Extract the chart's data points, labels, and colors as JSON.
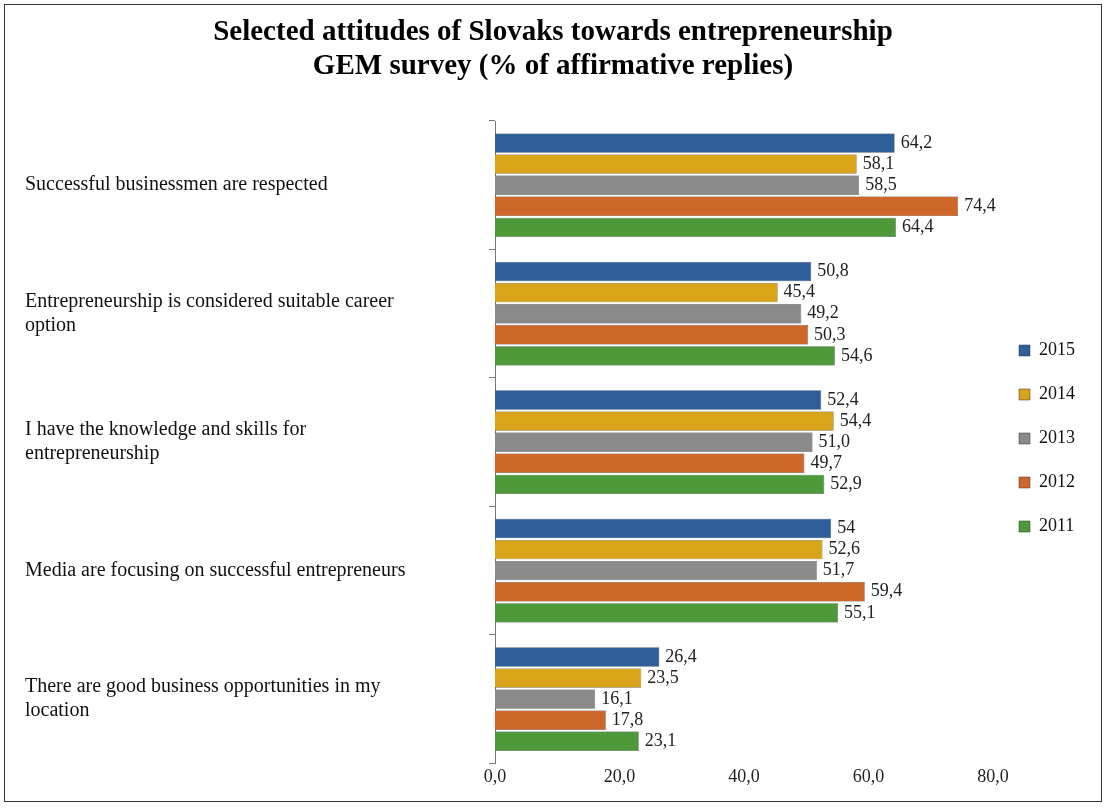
{
  "chart_data": {
    "type": "bar",
    "orientation": "horizontal",
    "title": "Selected attitudes of Slovaks towards entrepreneurship",
    "subtitle": "GEM survey (% of affirmative replies)",
    "categories": [
      "Successful businessmen are respected",
      "Entrepreneurship is considered suitable career option",
      "I have the knowledge and skills for entrepreneurship",
      "Media are focusing on successful entrepreneurs",
      "There are good business opportunities in my location"
    ],
    "series": [
      {
        "name": "2015",
        "color": "#2f5f9a",
        "values": [
          64.2,
          50.8,
          52.4,
          54,
          26.4
        ],
        "value_labels": [
          "64,2",
          "50,8",
          "52,4",
          "54",
          "26,4"
        ]
      },
      {
        "name": "2014",
        "color": "#d9a31a",
        "values": [
          58.1,
          45.4,
          54.4,
          52.6,
          23.5
        ],
        "value_labels": [
          "58,1",
          "45,4",
          "54,4",
          "52,6",
          "23,5"
        ]
      },
      {
        "name": "2013",
        "color": "#8a8a8a",
        "values": [
          58.5,
          49.2,
          51.0,
          51.7,
          16.1
        ],
        "value_labels": [
          "58,5",
          "49,2",
          "51,0",
          "51,7",
          "16,1"
        ]
      },
      {
        "name": "2012",
        "color": "#d0672a",
        "values": [
          74.4,
          50.3,
          49.7,
          59.4,
          17.8
        ],
        "value_labels": [
          "74,4",
          "50,3",
          "49,7",
          "59,4",
          "17,8"
        ]
      },
      {
        "name": "2011",
        "color": "#4e9a3a",
        "values": [
          64.4,
          54.6,
          52.9,
          55.1,
          23.1
        ],
        "value_labels": [
          "64,4",
          "54,6",
          "52,9",
          "55,1",
          "23,1"
        ]
      }
    ],
    "xlim": [
      0,
      80
    ],
    "xticks": [
      {
        "value": 0,
        "label": "0,0"
      },
      {
        "value": 20,
        "label": "20,0"
      },
      {
        "value": 40,
        "label": "40,0"
      },
      {
        "value": 60,
        "label": "60,0"
      },
      {
        "value": 80,
        "label": "80,0"
      }
    ],
    "grid": false,
    "legend": "right"
  }
}
